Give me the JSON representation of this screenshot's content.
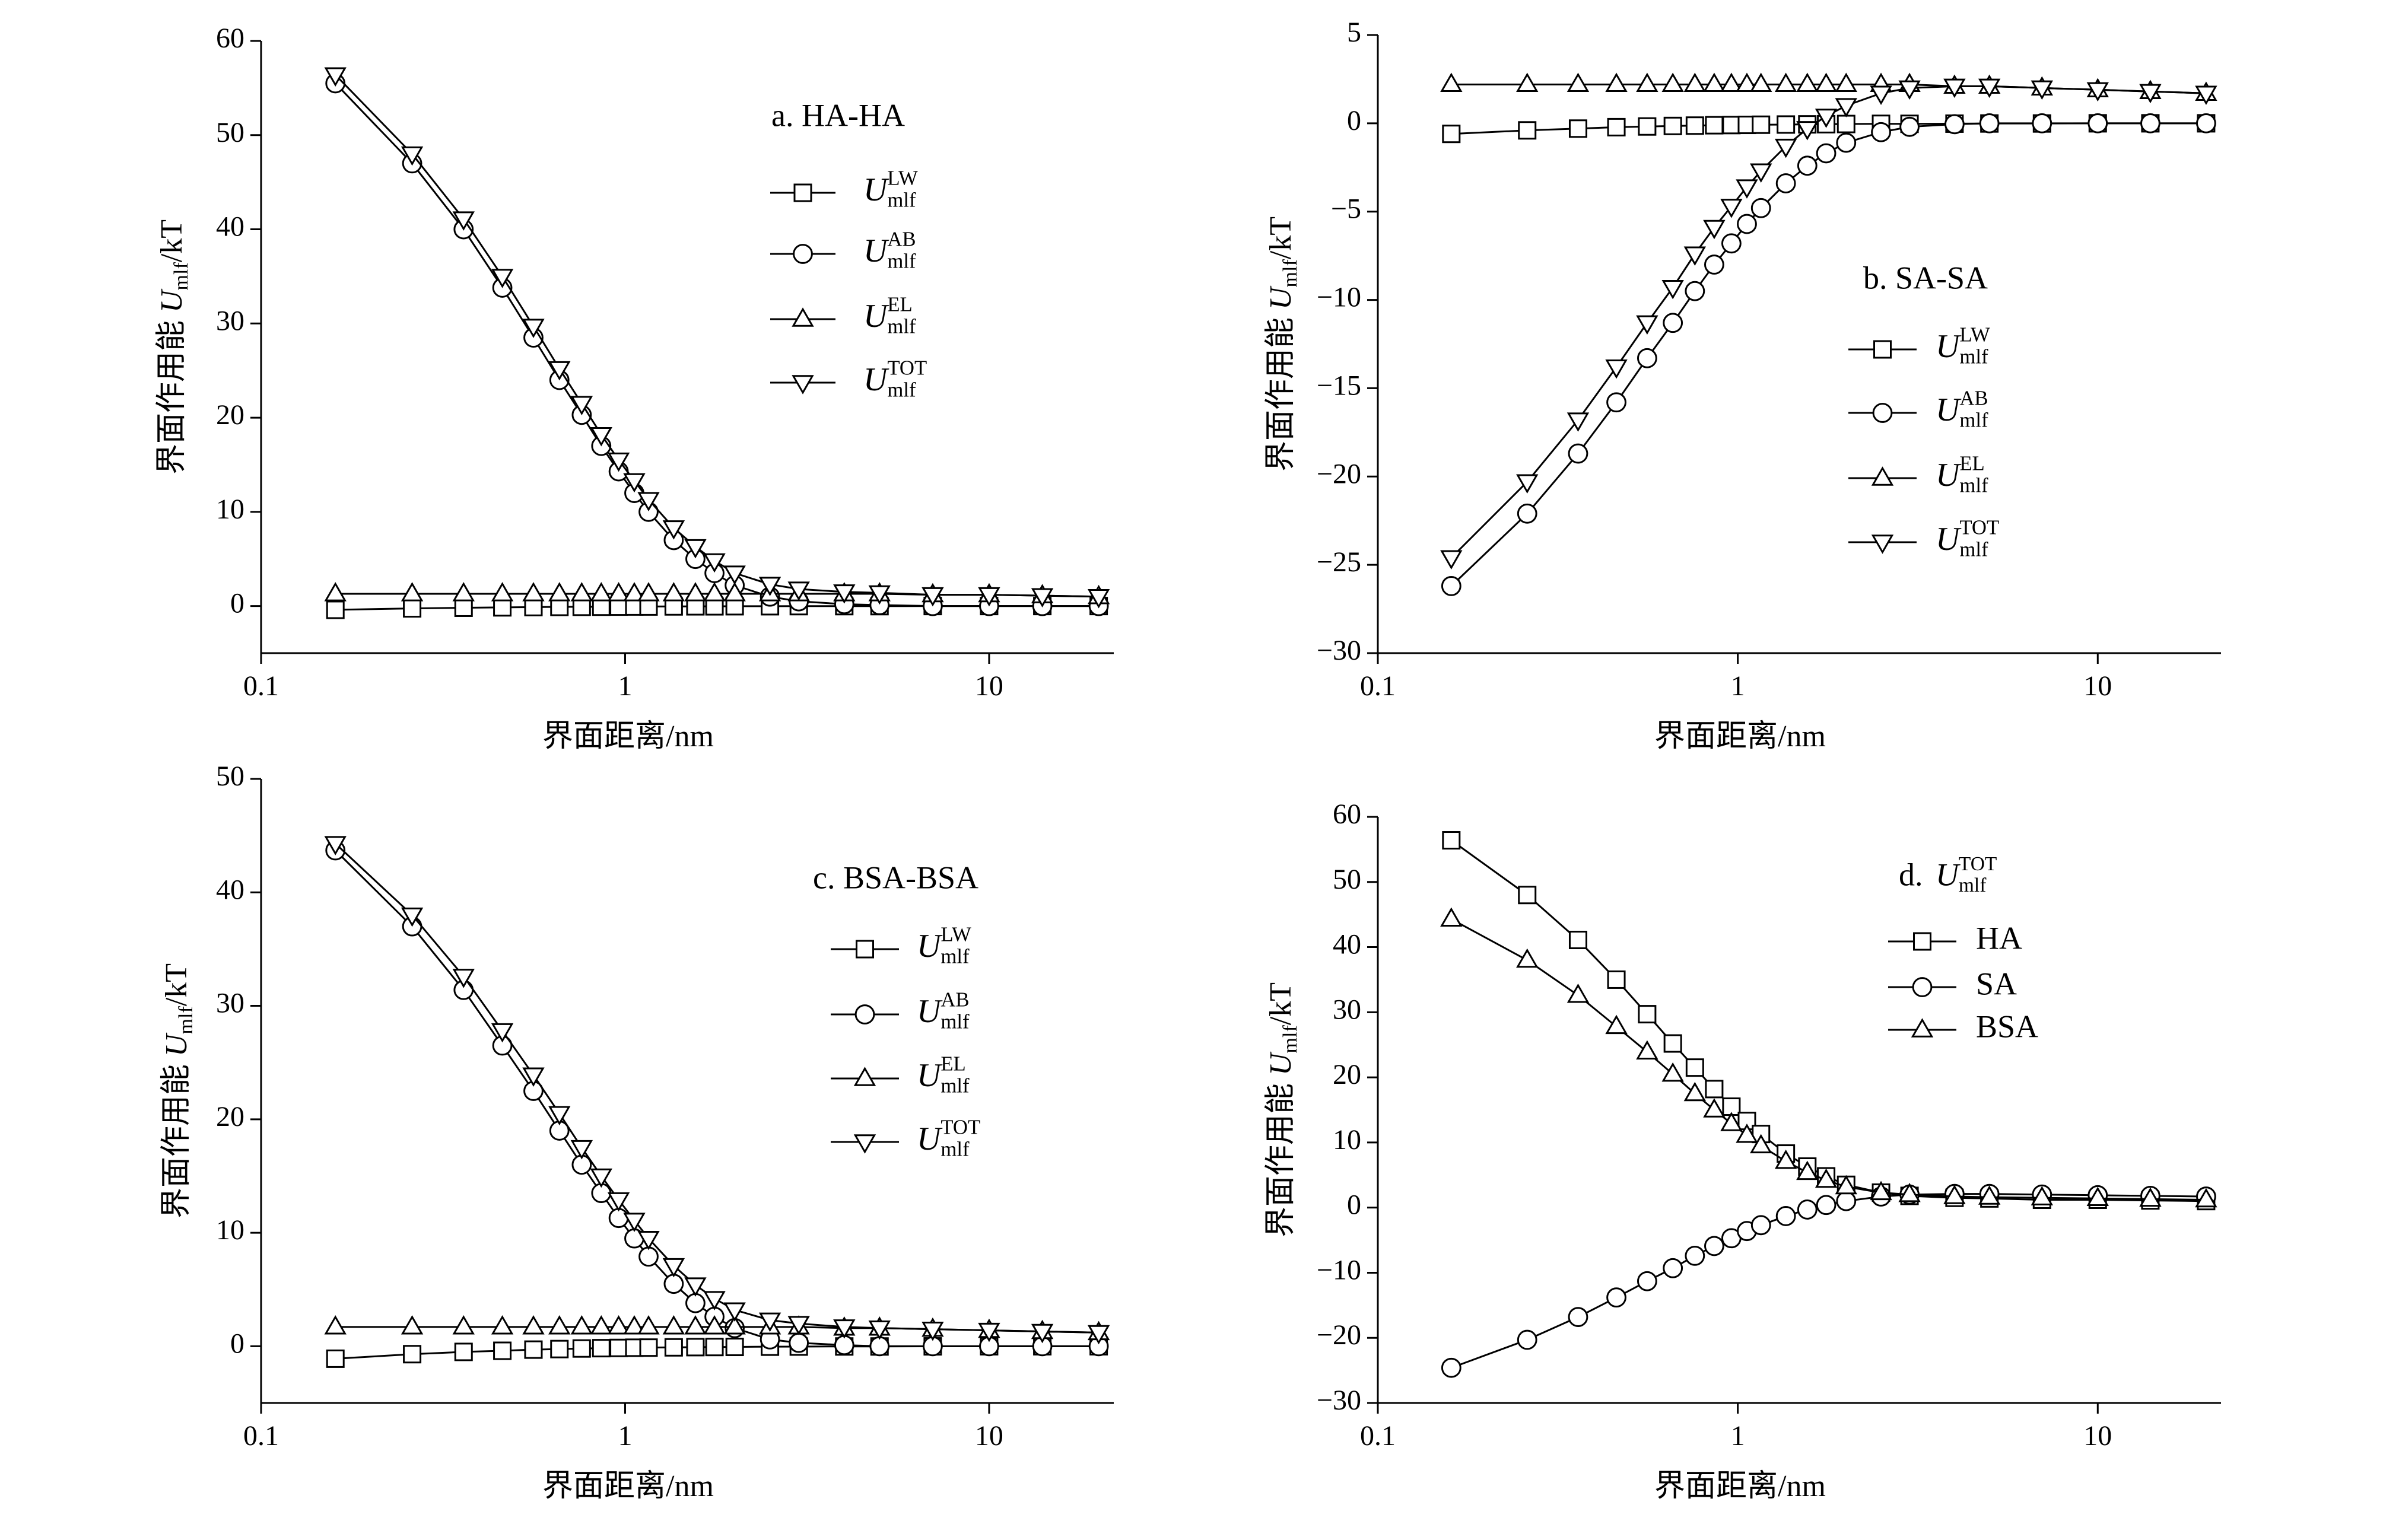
{
  "chart_data": [
    {
      "type": "line",
      "title": "a. HA-HA",
      "xlabel": "界面距离/nm",
      "ylabel": {
        "text": "界面作用能 ",
        "var": "U",
        "sub": "mlf",
        "unit": "/kT"
      },
      "xscale": "log",
      "xlim": [
        0.1,
        22
      ],
      "xticks": [
        0.1,
        1,
        10
      ],
      "ylim": [
        -5,
        60
      ],
      "yticks": [
        0,
        10,
        20,
        30,
        40,
        50,
        60
      ],
      "x": [
        0.16,
        0.26,
        0.36,
        0.46,
        0.56,
        0.66,
        0.76,
        0.86,
        0.96,
        1.06,
        1.16,
        1.36,
        1.56,
        1.76,
        2,
        2.5,
        3,
        4,
        5,
        7,
        10,
        14,
        20
      ],
      "series": [
        {
          "name": "U",
          "sub": "mlf",
          "sup": "LW",
          "marker": "square",
          "color": "#000000",
          "values": [
            -0.4,
            -0.25,
            -0.18,
            -0.14,
            -0.11,
            -0.09,
            -0.08,
            -0.07,
            -0.06,
            -0.05,
            -0.05,
            -0.04,
            -0.03,
            -0.03,
            -0.02,
            -0.02,
            -0.01,
            -0.01,
            -0.01,
            0,
            0,
            0,
            0
          ]
        },
        {
          "name": "U",
          "sub": "mlf",
          "sup": "AB",
          "marker": "circle",
          "color": "#000000",
          "values": [
            55.5,
            47,
            40,
            33.8,
            28.5,
            24,
            20.3,
            17,
            14.3,
            12,
            10,
            7,
            5,
            3.5,
            2.2,
            1,
            0.5,
            0.2,
            0.1,
            0,
            0,
            0,
            0
          ]
        },
        {
          "name": "U",
          "sub": "mlf",
          "sup": "EL",
          "marker": "triangle-up",
          "color": "#000000",
          "values": [
            1.3,
            1.3,
            1.3,
            1.3,
            1.3,
            1.3,
            1.3,
            1.3,
            1.3,
            1.3,
            1.3,
            1.3,
            1.3,
            1.3,
            1.3,
            1.3,
            1.3,
            1.3,
            1.3,
            1.2,
            1.2,
            1.1,
            1.0
          ]
        },
        {
          "name": "U",
          "sub": "mlf",
          "sup": "TOT",
          "marker": "triangle-down",
          "color": "#000000",
          "values": [
            56.4,
            48,
            41.1,
            35,
            29.7,
            25.2,
            21.5,
            18.2,
            15.5,
            13.3,
            11.3,
            8.3,
            6.3,
            4.8,
            3.5,
            2.3,
            1.8,
            1.5,
            1.4,
            1.2,
            1.2,
            1.1,
            1.0
          ]
        }
      ]
    },
    {
      "type": "line",
      "title": "b. SA-SA",
      "xlabel": "界面距离/nm",
      "ylabel": {
        "text": "界面作用能 ",
        "var": "U",
        "sub": "mlf",
        "unit": "/kT"
      },
      "xscale": "log",
      "xlim": [
        0.1,
        22
      ],
      "xticks": [
        0.1,
        1,
        10
      ],
      "ylim": [
        -30,
        5
      ],
      "yticks": [
        {
          "value": -30,
          "label": "−30"
        },
        {
          "value": -25,
          "label": "−25"
        },
        {
          "value": -20,
          "label": "−20"
        },
        {
          "value": -15,
          "label": "−15"
        },
        {
          "value": -10,
          "label": "−10"
        },
        {
          "value": -5,
          "label": "−5"
        },
        0,
        5
      ],
      "x": [
        0.16,
        0.26,
        0.36,
        0.46,
        0.56,
        0.66,
        0.76,
        0.86,
        0.96,
        1.06,
        1.16,
        1.36,
        1.56,
        1.76,
        2,
        2.5,
        3,
        4,
        5,
        7,
        10,
        14,
        20
      ],
      "series": [
        {
          "name": "U",
          "sub": "mlf",
          "sup": "LW",
          "marker": "square",
          "color": "#000000",
          "values": [
            -0.6,
            -0.4,
            -0.3,
            -0.22,
            -0.18,
            -0.15,
            -0.13,
            -0.11,
            -0.1,
            -0.09,
            -0.08,
            -0.07,
            -0.06,
            -0.05,
            -0.04,
            -0.03,
            -0.03,
            -0.02,
            -0.01,
            -0.01,
            0,
            0,
            0
          ]
        },
        {
          "name": "U",
          "sub": "mlf",
          "sup": "AB",
          "marker": "circle",
          "color": "#000000",
          "values": [
            -26.2,
            -22.1,
            -18.7,
            -15.8,
            -13.3,
            -11.3,
            -9.5,
            -8,
            -6.8,
            -5.7,
            -4.8,
            -3.4,
            -2.4,
            -1.7,
            -1.1,
            -0.5,
            -0.2,
            -0.05,
            0,
            0,
            0,
            0,
            0
          ]
        },
        {
          "name": "U",
          "sub": "mlf",
          "sup": "EL",
          "marker": "triangle-up",
          "color": "#000000",
          "values": [
            2.2,
            2.2,
            2.2,
            2.2,
            2.2,
            2.2,
            2.2,
            2.2,
            2.2,
            2.2,
            2.2,
            2.2,
            2.2,
            2.2,
            2.2,
            2.2,
            2.2,
            2.1,
            2.1,
            2,
            1.9,
            1.8,
            1.7
          ]
        },
        {
          "name": "U",
          "sub": "mlf",
          "sup": "TOT",
          "marker": "triangle-down",
          "color": "#000000",
          "values": [
            -24.6,
            -20.3,
            -16.8,
            -13.8,
            -11.3,
            -9.3,
            -7.4,
            -5.9,
            -4.7,
            -3.6,
            -2.7,
            -1.3,
            -0.3,
            0.4,
            1,
            1.7,
            2,
            2.1,
            2.1,
            2,
            1.9,
            1.8,
            1.7
          ]
        }
      ]
    },
    {
      "type": "line",
      "title": "c. BSA-BSA",
      "xlabel": "界面距离/nm",
      "ylabel": {
        "text": "界面作用能 ",
        "var": "U",
        "sub": "mlf",
        "unit": "/kT"
      },
      "xscale": "log",
      "xlim": [
        0.1,
        22
      ],
      "xticks": [
        0.1,
        1,
        10
      ],
      "ylim": [
        -5,
        50
      ],
      "yticks": [
        0,
        10,
        20,
        30,
        40,
        50
      ],
      "x": [
        0.16,
        0.26,
        0.36,
        0.46,
        0.56,
        0.66,
        0.76,
        0.86,
        0.96,
        1.06,
        1.16,
        1.36,
        1.56,
        1.76,
        2,
        2.5,
        3,
        4,
        5,
        7,
        10,
        14,
        20
      ],
      "series": [
        {
          "name": "U",
          "sub": "mlf",
          "sup": "LW",
          "marker": "square",
          "color": "#000000",
          "values": [
            -1.1,
            -0.7,
            -0.5,
            -0.4,
            -0.3,
            -0.25,
            -0.2,
            -0.17,
            -0.15,
            -0.13,
            -0.12,
            -0.1,
            -0.08,
            -0.07,
            -0.06,
            -0.04,
            -0.03,
            -0.02,
            -0.02,
            -0.01,
            0,
            0,
            0
          ]
        },
        {
          "name": "U",
          "sub": "mlf",
          "sup": "AB",
          "marker": "circle",
          "color": "#000000",
          "values": [
            43.7,
            37,
            31.4,
            26.5,
            22.5,
            19,
            16,
            13.5,
            11.3,
            9.5,
            7.9,
            5.5,
            3.8,
            2.6,
            1.6,
            0.6,
            0.3,
            0.1,
            0,
            0,
            0,
            0,
            0
          ]
        },
        {
          "name": "U",
          "sub": "mlf",
          "sup": "EL",
          "marker": "triangle-up",
          "color": "#000000",
          "values": [
            1.7,
            1.7,
            1.7,
            1.7,
            1.7,
            1.7,
            1.7,
            1.7,
            1.7,
            1.7,
            1.7,
            1.7,
            1.7,
            1.7,
            1.7,
            1.7,
            1.7,
            1.6,
            1.6,
            1.5,
            1.4,
            1.3,
            1.2
          ]
        },
        {
          "name": "U",
          "sub": "mlf",
          "sup": "TOT",
          "marker": "triangle-down",
          "color": "#000000",
          "values": [
            44.3,
            38,
            32.6,
            27.8,
            23.9,
            20.5,
            17.5,
            15,
            12.9,
            11.1,
            9.5,
            7.1,
            5.4,
            4.2,
            3.2,
            2.3,
            2,
            1.7,
            1.6,
            1.5,
            1.4,
            1.3,
            1.2
          ]
        }
      ]
    },
    {
      "type": "line",
      "title": {
        "text": "d. ",
        "var": "U",
        "sub": "mlf",
        "sup": "TOT"
      },
      "xlabel": "界面距离/nm",
      "ylabel": {
        "text": "界面作用能 ",
        "var": "U",
        "sub": "mlf",
        "unit": "/kT"
      },
      "xscale": "log",
      "xlim": [
        0.1,
        22
      ],
      "xticks": [
        0.1,
        1,
        10
      ],
      "ylim": [
        -30,
        60
      ],
      "yticks": [
        {
          "value": -30,
          "label": "−30"
        },
        {
          "value": -20,
          "label": "−20"
        },
        {
          "value": -10,
          "label": "−10"
        },
        0,
        10,
        20,
        30,
        40,
        50,
        60
      ],
      "x": [
        0.16,
        0.26,
        0.36,
        0.46,
        0.56,
        0.66,
        0.76,
        0.86,
        0.96,
        1.06,
        1.16,
        1.36,
        1.56,
        1.76,
        2,
        2.5,
        3,
        4,
        5,
        7,
        10,
        14,
        20
      ],
      "series": [
        {
          "name": "HA",
          "marker": "square",
          "color": "#000000",
          "values": [
            56.4,
            48,
            41.1,
            35,
            29.7,
            25.2,
            21.5,
            18.2,
            15.5,
            13.3,
            11.3,
            8.3,
            6.3,
            4.8,
            3.5,
            2.3,
            1.8,
            1.5,
            1.4,
            1.2,
            1.2,
            1.1,
            1.0
          ]
        },
        {
          "name": "SA",
          "marker": "circle",
          "color": "#000000",
          "values": [
            -24.6,
            -20.3,
            -16.8,
            -13.8,
            -11.3,
            -9.3,
            -7.4,
            -5.9,
            -4.7,
            -3.6,
            -2.7,
            -1.3,
            -0.3,
            0.4,
            1,
            1.7,
            2,
            2.1,
            2.1,
            2,
            1.9,
            1.8,
            1.7
          ]
        },
        {
          "name": "BSA",
          "marker": "triangle-up",
          "color": "#000000",
          "values": [
            44.3,
            38,
            32.6,
            27.8,
            23.9,
            20.5,
            17.5,
            15,
            12.9,
            11.1,
            9.5,
            7.1,
            5.4,
            4.2,
            3.2,
            2.3,
            2,
            1.7,
            1.6,
            1.5,
            1.4,
            1.3,
            1.2
          ]
        }
      ]
    }
  ]
}
